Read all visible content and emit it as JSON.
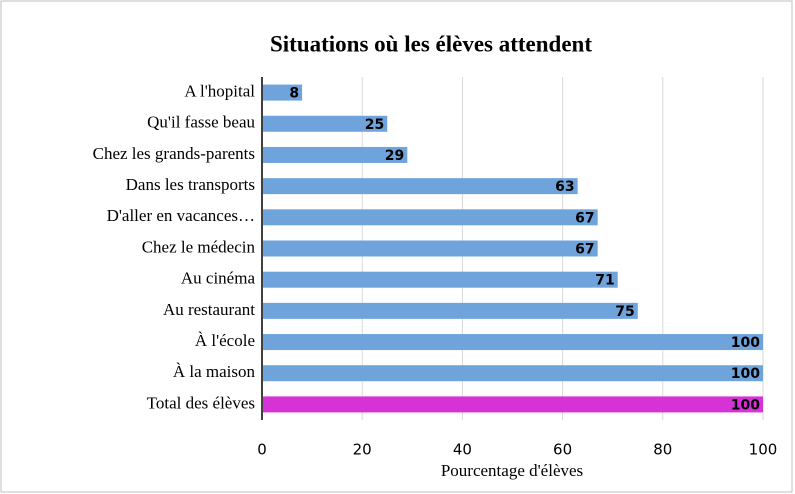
{
  "chart_data": {
    "type": "hbar",
    "title": "Situations où les élèves attendent",
    "categories": [
      "A l'hopital",
      "Qu'il fasse beau",
      "Chez les grands-parents",
      "Dans les transports",
      "D'aller en vacances…",
      "Chez le médecin",
      "Au cinéma",
      "Au restaurant",
      "À l'école",
      "À la maison",
      "Total des élèves"
    ],
    "values": [
      8,
      25,
      29,
      63,
      67,
      67,
      71,
      75,
      100,
      100,
      100
    ],
    "colors": [
      "#6fa3dc",
      "#6fa3dc",
      "#6fa3dc",
      "#6fa3dc",
      "#6fa3dc",
      "#6fa3dc",
      "#6fa3dc",
      "#6fa3dc",
      "#6fa3dc",
      "#6fa3dc",
      "#d633d6"
    ],
    "xlabel": "Pourcentage d'élèves",
    "xlim": [
      0,
      100
    ],
    "xticks": [
      0,
      20,
      40,
      60,
      80,
      100
    ],
    "grid": true
  }
}
